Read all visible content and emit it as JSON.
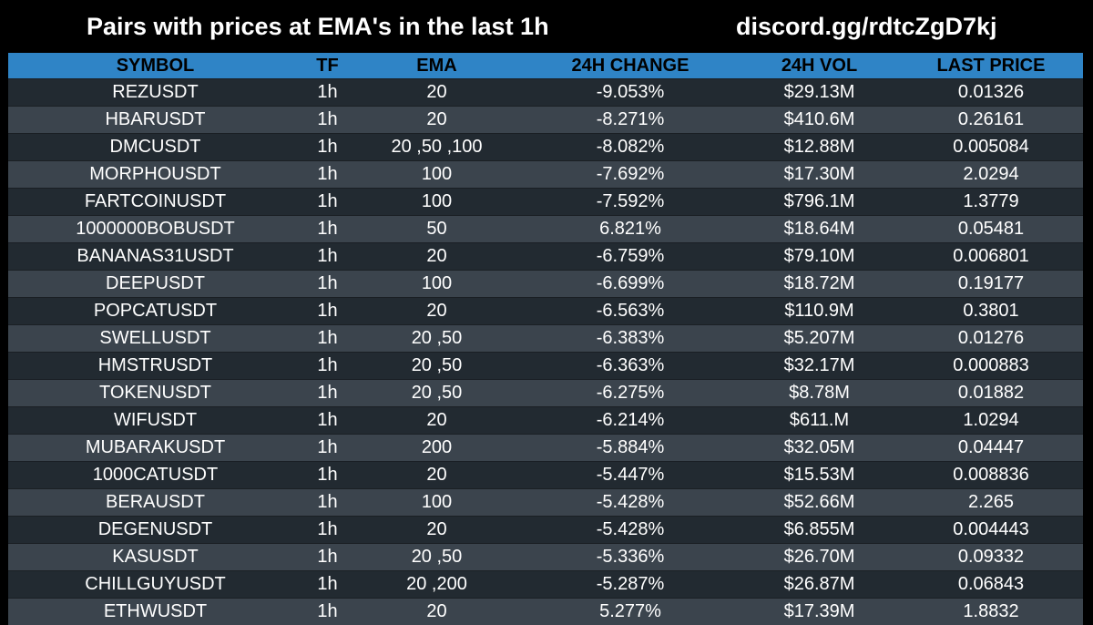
{
  "header": {
    "title": "Pairs with prices at EMA's in the last 1h",
    "link": "discord.gg/rdtcZgD7kj"
  },
  "colors": {
    "background": "#000000",
    "header_row": "#2f84c6",
    "row_dark": "#222a31",
    "row_light": "#3b444d",
    "text": "#ffffff"
  },
  "table": {
    "columns": [
      "SYMBOL",
      "TF",
      "EMA",
      "24H CHANGE",
      "24H VOL",
      "LAST PRICE"
    ],
    "rows": [
      [
        "REZUSDT",
        "1h",
        "20",
        "-9.053%",
        "$29.13M",
        "0.01326"
      ],
      [
        "HBARUSDT",
        "1h",
        "20",
        "-8.271%",
        "$410.6M",
        "0.26161"
      ],
      [
        "DMCUSDT",
        "1h",
        "20 ,50 ,100",
        "-8.082%",
        "$12.88M",
        "0.005084"
      ],
      [
        "MORPHOUSDT",
        "1h",
        "100",
        "-7.692%",
        "$17.30M",
        "2.0294"
      ],
      [
        "FARTCOINUSDT",
        "1h",
        "100",
        "-7.592%",
        "$796.1M",
        "1.3779"
      ],
      [
        "1000000BOBUSDT",
        "1h",
        "50",
        "6.821%",
        "$18.64M",
        "0.05481"
      ],
      [
        "BANANAS31USDT",
        "1h",
        "20",
        "-6.759%",
        "$79.10M",
        "0.006801"
      ],
      [
        "DEEPUSDT",
        "1h",
        "100",
        "-6.699%",
        "$18.72M",
        "0.19177"
      ],
      [
        "POPCATUSDT",
        "1h",
        "20",
        "-6.563%",
        "$110.9M",
        "0.3801"
      ],
      [
        "SWELLUSDT",
        "1h",
        "20 ,50",
        "-6.383%",
        "$5.207M",
        "0.01276"
      ],
      [
        "HMSTRUSDT",
        "1h",
        "20 ,50",
        "-6.363%",
        "$32.17M",
        "0.000883"
      ],
      [
        "TOKENUSDT",
        "1h",
        "20 ,50",
        "-6.275%",
        "$8.78M",
        "0.01882"
      ],
      [
        "WIFUSDT",
        "1h",
        "20",
        "-6.214%",
        "$611.M",
        "1.0294"
      ],
      [
        "MUBARAKUSDT",
        "1h",
        "200",
        "-5.884%",
        "$32.05M",
        "0.04447"
      ],
      [
        "1000CATUSDT",
        "1h",
        "20",
        "-5.447%",
        "$15.53M",
        "0.008836"
      ],
      [
        "BERAUSDT",
        "1h",
        "100",
        "-5.428%",
        "$52.66M",
        "2.265"
      ],
      [
        "DEGENUSDT",
        "1h",
        "20",
        "-5.428%",
        "$6.855M",
        "0.004443"
      ],
      [
        "KASUSDT",
        "1h",
        "20 ,50",
        "-5.336%",
        "$26.70M",
        "0.09332"
      ],
      [
        "CHILLGUYUSDT",
        "1h",
        "20 ,200",
        "-5.287%",
        "$26.87M",
        "0.06843"
      ],
      [
        "ETHWUSDT",
        "1h",
        "20",
        "5.277%",
        "$17.39M",
        "1.8832"
      ]
    ]
  }
}
